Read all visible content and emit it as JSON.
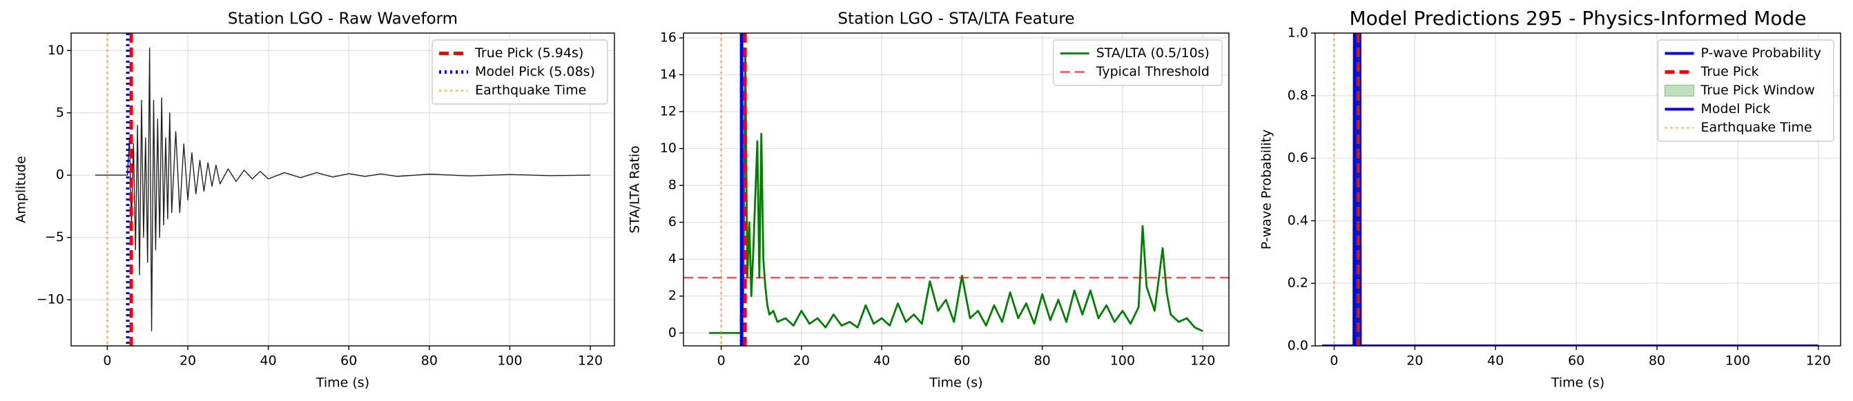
{
  "chart_data": [
    {
      "type": "line",
      "title": "Station LGO - Raw Waveform",
      "x_label": "Time (s)",
      "y_label": "Amplitude",
      "xlim": [
        -9,
        126
      ],
      "ylim": [
        -13.7,
        11.4
      ],
      "xticks": [
        0,
        20,
        40,
        60,
        80,
        100,
        120
      ],
      "yticks": [
        {
          "value": -10,
          "label": "−10"
        },
        {
          "value": -5,
          "label": "−5"
        },
        0,
        5,
        10
      ],
      "grid": true,
      "legend": "upper right",
      "series": [
        {
          "color": "#222222",
          "width": 1.4,
          "x": [
            -3,
            5,
            5.5,
            6,
            6.5,
            7,
            7.5,
            8,
            8.5,
            9,
            9.5,
            10,
            10.5,
            11,
            11.5,
            12,
            12.5,
            13,
            13.5,
            14,
            14.5,
            15,
            15.5,
            16,
            17,
            18,
            19,
            20,
            21,
            22,
            23,
            24,
            25,
            26,
            27,
            28,
            30,
            32,
            34,
            36,
            38,
            40,
            44,
            48,
            52,
            56,
            60,
            64,
            68,
            72,
            80,
            90,
            100,
            110,
            120
          ],
          "values": [
            0,
            0,
            3,
            -4,
            2.5,
            -6,
            4,
            -8,
            6,
            -5,
            3,
            -7,
            10.2,
            -12.5,
            6,
            -6,
            4.5,
            -5,
            6.2,
            -4,
            3,
            -3.5,
            5,
            -3,
            3.5,
            -3,
            2.5,
            -2,
            1.8,
            -1.5,
            1.2,
            -1.3,
            1,
            -0.9,
            0.8,
            -0.7,
            0.5,
            -0.5,
            0.4,
            -0.3,
            0.3,
            -0.3,
            0.2,
            -0.2,
            0.2,
            -0.15,
            0.12,
            -0.1,
            0.1,
            -0.1,
            0.08,
            -0.06,
            0.05,
            -0.04,
            0
          ]
        },
        {
          "name": "True Pick (5.94s)",
          "x": 5.94,
          "color": "#ff0000",
          "dash": "dashed",
          "width": 5
        },
        {
          "name": "Model Pick (5.08s)",
          "x": 5.08,
          "color": "#0000ff",
          "dash": "dotted",
          "width": 5
        },
        {
          "name": "Earthquake Time",
          "x": 0,
          "color": "#ffa500",
          "dash": "dotted",
          "width": 2.5,
          "opacity": 0.8
        }
      ]
    },
    {
      "type": "line",
      "title": "Station LGO - STA/LTA Feature",
      "x_label": "Time (s)",
      "y_label": "STA/LTA Ratio",
      "xlim": [
        -9.4,
        126.5
      ],
      "ylim": [
        -0.7,
        16.26
      ],
      "xticks": [
        0,
        20,
        40,
        60,
        80,
        100,
        120
      ],
      "yticks": [
        0,
        2,
        4,
        6,
        8,
        10,
        12,
        14,
        16
      ],
      "grid": true,
      "legend": "upper right",
      "series": [
        {
          "name": "STA/LTA (0.5/10s)",
          "color": "#008000",
          "width": 2.8,
          "x": [
            -3,
            5,
            5.5,
            6,
            6.5,
            7,
            7.5,
            8,
            9,
            9.5,
            10,
            10.5,
            11,
            11.5,
            12,
            13,
            14,
            16,
            18,
            20,
            22,
            24,
            26,
            28,
            30,
            32,
            34,
            36,
            38,
            40,
            42,
            44,
            46,
            48,
            50,
            52,
            53,
            54,
            56,
            58,
            60,
            62,
            64,
            66,
            68,
            70,
            72,
            74,
            76,
            78,
            80,
            82,
            84,
            86,
            88,
            90,
            92,
            94,
            96,
            98,
            100,
            102,
            104,
            105,
            106,
            108,
            110,
            111,
            112,
            114,
            116,
            118,
            120
          ],
          "values": [
            0,
            0,
            2,
            15.3,
            3,
            6,
            2,
            4.5,
            10.4,
            3,
            10.8,
            4,
            2.5,
            1.5,
            1,
            1.2,
            0.6,
            0.8,
            0.4,
            1.2,
            0.5,
            0.8,
            0.3,
            1,
            0.4,
            0.6,
            0.3,
            1.5,
            0.5,
            0.8,
            0.4,
            1.6,
            0.6,
            1,
            0.5,
            2.8,
            2,
            1.2,
            1.8,
            0.6,
            3.1,
            0.8,
            1.2,
            0.4,
            1.5,
            0.6,
            2.2,
            0.8,
            1.6,
            0.5,
            2.1,
            0.7,
            1.8,
            0.6,
            2.3,
            1,
            2.3,
            0.8,
            1.5,
            0.6,
            1.2,
            0.5,
            1.4,
            5.8,
            2.5,
            1.2,
            4.6,
            2.2,
            1,
            0.6,
            0.8,
            0.3,
            0.1
          ]
        },
        {
          "name": "Typical Threshold",
          "y": 3,
          "color": "#ff0000",
          "dash": "dashed",
          "width": 2.5,
          "opacity": 0.7
        },
        {
          "x": 5.94,
          "color": "#ff0000",
          "dash": "dashed",
          "width": 5
        },
        {
          "x": 5.08,
          "color": "#0000ff",
          "width": 5
        },
        {
          "x": 0,
          "color": "#ffa500",
          "dash": "dotted",
          "width": 2.5,
          "opacity": 0.8
        }
      ]
    },
    {
      "type": "line",
      "title": "Model Predictions 295 - Physics-Informed Mode",
      "x_label": "Time (s)",
      "y_label": "P-wave Probability",
      "xlim": [
        -4.7,
        125.5
      ],
      "ylim": [
        0,
        1
      ],
      "xticks": [
        0,
        20,
        40,
        60,
        80,
        100,
        120
      ],
      "yticks": [
        {
          "value": 0,
          "label": "0.0"
        },
        {
          "value": 0.2,
          "label": "0.2"
        },
        {
          "value": 0.4,
          "label": "0.4"
        },
        {
          "value": 0.6,
          "label": "0.6"
        },
        {
          "value": 0.8,
          "label": "0.8"
        },
        {
          "value": 1,
          "label": "1.0"
        }
      ],
      "grid": true,
      "legend": "upper right",
      "series": [
        {
          "name": "P-wave Probability",
          "color": "#0000ff",
          "width": 4,
          "x": [
            -3,
            4.9,
            5.0,
            5.2,
            5.3,
            5.5,
            5.6,
            5.8,
            5.9,
            6.1,
            6.2,
            6.4,
            6.5,
            120
          ],
          "values": [
            0,
            0,
            1,
            1,
            0,
            0,
            1,
            1,
            0,
            0,
            1,
            1,
            0,
            0
          ]
        },
        {
          "name": "True Pick",
          "x": 5.94,
          "color": "#ff0000",
          "dash": "dashed",
          "width": 5
        },
        {
          "name": "True Pick Window",
          "span": [
            5.4,
            6.5
          ],
          "color": "#008000",
          "opacity": 0.25
        },
        {
          "name": "Model Pick",
          "x": 5.08,
          "color": "#0000ff",
          "width": 4
        },
        {
          "name": "Earthquake Time",
          "x": 0,
          "color": "#ffa500",
          "dash": "dotted",
          "width": 2.5,
          "opacity": 0.8
        }
      ]
    }
  ]
}
